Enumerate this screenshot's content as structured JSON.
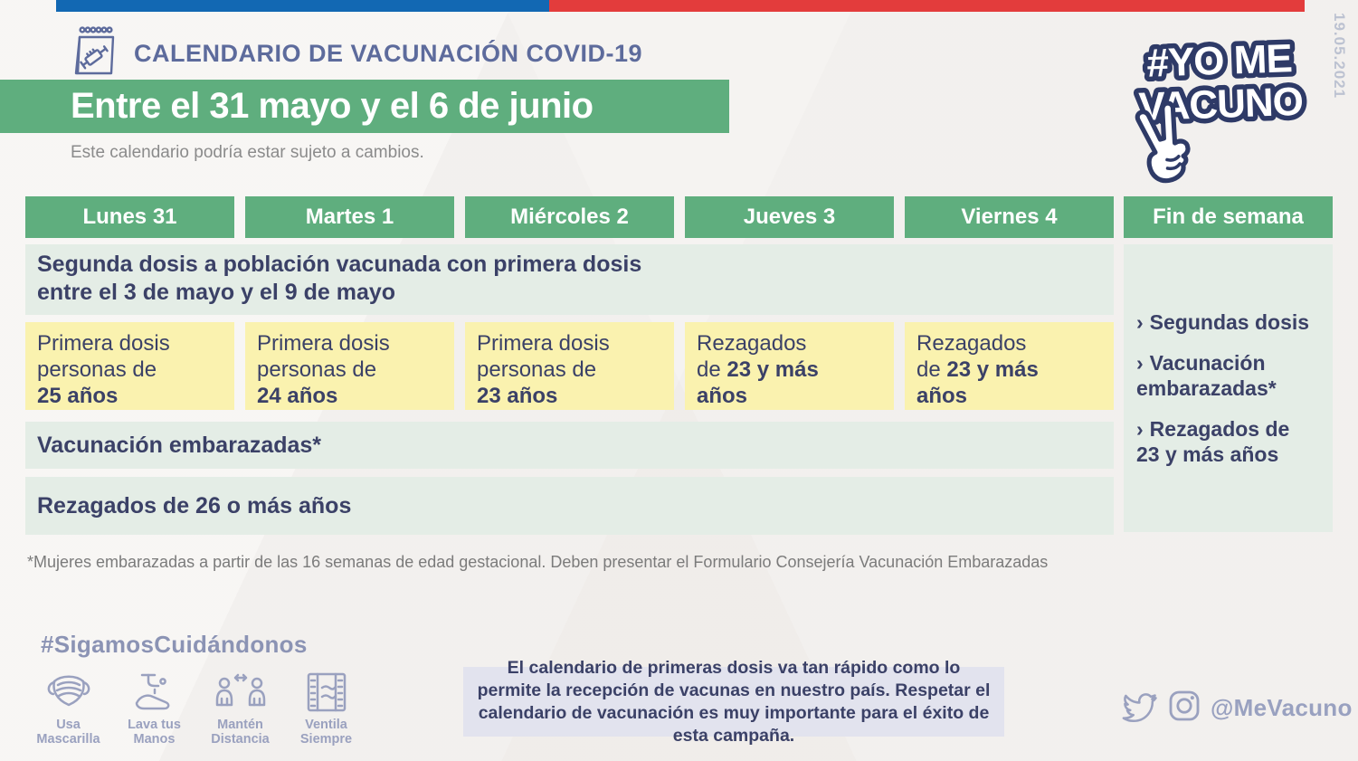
{
  "colors": {
    "green": "#5FAE7E",
    "light_green_row": "#E4EDE6",
    "yellow_cell": "#FAF2AF",
    "navy_text": "#3B4167",
    "slate_title": "#5D6B9C",
    "flag_blue": "#1268B3",
    "flag_red": "#E33C3C",
    "notice_bg": "#E2E3EE",
    "footer_slate": "#9AA1BF",
    "background": "#F5F3F1"
  },
  "header": {
    "date_vertical": "19.05.2021",
    "icon": "calendar-syringe-icon",
    "title": "CALENDARIO DE VACUNACIÓN COVID-19",
    "banner_title": "Entre el 31 mayo y el 6 de junio",
    "subtitle": "Este calendario podría estar sujeto a cambios."
  },
  "logo": {
    "line1": "#YO ME",
    "line2": "VACUNO",
    "hand": "victory-hand-icon"
  },
  "calendar": {
    "day_headers": [
      "Lunes 31",
      "Martes 1",
      "Miércoles 2",
      "Jueves 3",
      "Viernes 4"
    ],
    "weekend_header": "Fin de semana",
    "second_dose_row": {
      "line1": "Segunda dosis a población vacunada con primera dosis",
      "line2": "entre el 3 de mayo y el 9 de mayo"
    },
    "day_cells": [
      {
        "lines": [
          {
            "t": "Primera dosis"
          },
          {
            "t": "personas de"
          },
          {
            "t": "25 años",
            "bold": true
          }
        ]
      },
      {
        "lines": [
          {
            "t": "Primera dosis"
          },
          {
            "t": "personas de"
          },
          {
            "t": "24 años",
            "bold": true
          }
        ]
      },
      {
        "lines": [
          {
            "t": "Primera dosis"
          },
          {
            "t": "personas de"
          },
          {
            "t": "23 años",
            "bold": true
          }
        ]
      },
      {
        "lines": [
          {
            "t": "Rezagados"
          },
          {
            "pre": "de ",
            "t": "23 y más",
            "bold": true
          },
          {
            "t": "años",
            "bold": true
          }
        ]
      },
      {
        "lines": [
          {
            "t": "Rezagados"
          },
          {
            "pre": "de ",
            "t": "23 y más",
            "bold": true
          },
          {
            "t": "años",
            "bold": true
          }
        ]
      }
    ],
    "pregnant_row": "Vacunación embarazadas*",
    "stragglers_row": "Rezagados de 26 o más años",
    "weekend_items": [
      {
        "chevron": "›",
        "label": "Segundas dosis"
      },
      {
        "chevron": "›",
        "label": "Vacunación embarazadas*"
      },
      {
        "chevron": "›",
        "label": "Rezagados de 23 y más años"
      }
    ]
  },
  "footnote": "*Mujeres embarazadas a partir de las 16 semanas de edad gestacional. Deben presentar el Formulario Consejería Vacunación Embarazadas",
  "footer": {
    "hashtag": "#SigamosCuidándonos",
    "tips": [
      {
        "icon": "mask-icon",
        "label_lines": [
          "Usa",
          "Mascarilla"
        ]
      },
      {
        "icon": "wash-hands-icon",
        "label_lines": [
          "Lava tus",
          "Manos"
        ]
      },
      {
        "icon": "distance-icon",
        "label_lines": [
          "Mantén",
          "Distancia"
        ]
      },
      {
        "icon": "ventilate-icon",
        "label_lines": [
          "Ventila",
          "Siempre"
        ]
      }
    ],
    "notice": "El calendario de primeras dosis va tan rápido como lo permite la recepción de vacunas en nuestro país. Respetar el calendario de vacunación es muy importante para el éxito de esta campaña.",
    "social_handle": "@MeVacuno"
  }
}
